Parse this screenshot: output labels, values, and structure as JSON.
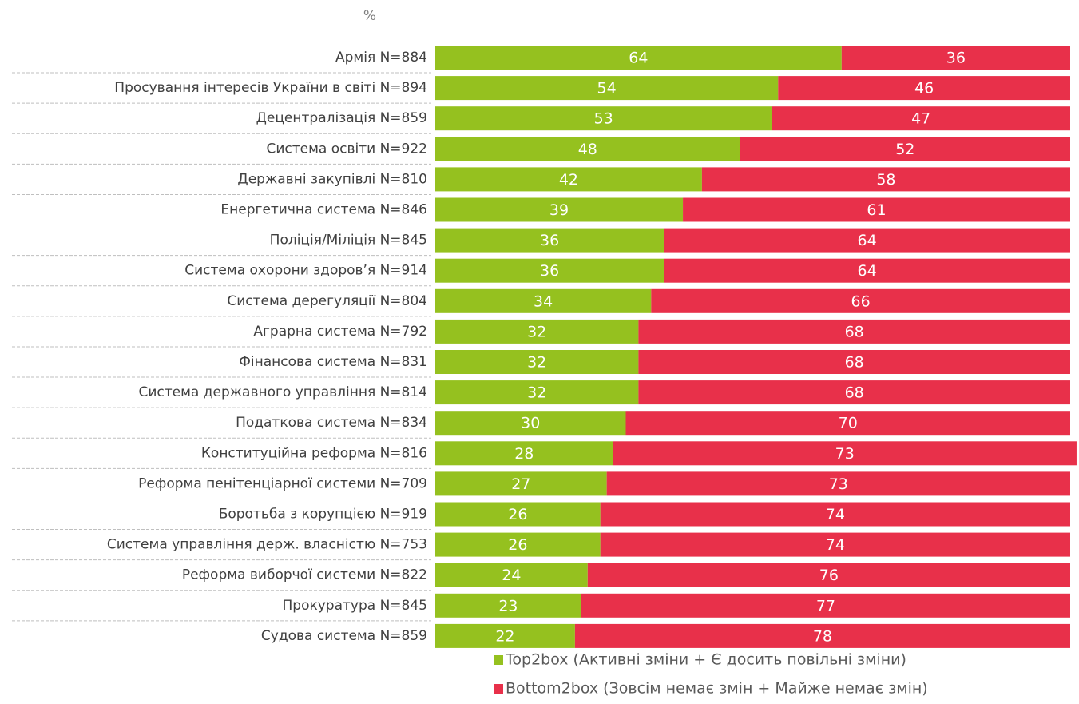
{
  "chart_data": {
    "type": "stacked-bar-horizontal",
    "axis_label": "%",
    "categories": [
      "Армія N=884",
      "Просування інтересів України в світі N=894",
      "Децентралізація N=859",
      "Система освіти N=922",
      "Державні закупівлі N=810",
      "Енергетична система N=846",
      "Поліція/Міліція N=845",
      "Система охорони здоров’я N=914",
      "Система дерегуляції N=804",
      "Аграрна система N=792",
      "Фінансова система N=831",
      "Система державного управління N=814",
      "Податкова система N=834",
      "Конституційна реформа N=816",
      "Реформа пенітенціарної системи N=709",
      "Боротьба з корупцією N=919",
      "Система управління держ. власністю N=753",
      "Реформа виборчої системи N=822",
      "Прокуратура N=845",
      "Судова система N=859"
    ],
    "series": [
      {
        "name": "Top2box (Активні зміни + Є досить повільні зміни)",
        "color": "#95c11f",
        "values": [
          64,
          54,
          53,
          48,
          42,
          39,
          36,
          36,
          34,
          32,
          32,
          32,
          30,
          28,
          27,
          26,
          26,
          24,
          23,
          22
        ]
      },
      {
        "name": "Bottom2box (Зовсім немає змін + Майже немає змін)",
        "color": "#e8304a",
        "values": [
          36,
          46,
          47,
          52,
          58,
          61,
          64,
          64,
          66,
          68,
          68,
          68,
          70,
          73,
          73,
          74,
          74,
          76,
          77,
          78
        ]
      }
    ],
    "xlim": [
      0,
      100
    ]
  }
}
